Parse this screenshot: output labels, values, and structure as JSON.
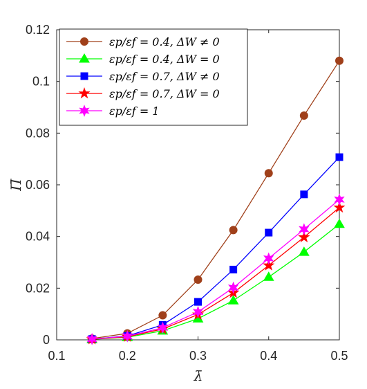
{
  "chart_data": {
    "type": "line",
    "xlabel": "λ̄",
    "ylabel": "Π̄",
    "xlim": [
      0.1,
      0.5
    ],
    "ylim": [
      0,
      0.12
    ],
    "xticks": [
      "0.1",
      "0.2",
      "0.3",
      "0.4",
      "0.5"
    ],
    "yticks": [
      "0",
      "0.02",
      "0.04",
      "0.06",
      "0.08",
      "0.1",
      "0.12"
    ],
    "grid": false,
    "legend_position": "top-left",
    "x": [
      0.15,
      0.2,
      0.25,
      0.3,
      0.35,
      0.4,
      0.45,
      0.5
    ],
    "series": [
      {
        "name": "εp/εf = 0.4, ΔW ≠ 0",
        "color": "#A0401A",
        "marker": "circle",
        "values": [
          0.0005,
          0.0025,
          0.0095,
          0.0233,
          0.0425,
          0.0645,
          0.0868,
          0.108
        ]
      },
      {
        "name": "εp/εf = 0.4, ΔW = 0",
        "color": "#00FF00",
        "marker": "triangle",
        "values": [
          0.0002,
          0.001,
          0.0035,
          0.0082,
          0.0152,
          0.0243,
          0.034,
          0.0448
        ]
      },
      {
        "name": "εp/εf = 0.7, ΔW ≠ 0",
        "color": "#0000FF",
        "marker": "square",
        "values": [
          0.0003,
          0.0015,
          0.0058,
          0.0147,
          0.0272,
          0.0415,
          0.0563,
          0.0707
        ]
      },
      {
        "name": "εp/εf = 0.7, ΔW = 0",
        "color": "#FF0000",
        "marker": "star",
        "values": [
          0.0002,
          0.0012,
          0.0042,
          0.0098,
          0.0182,
          0.0288,
          0.0397,
          0.0512
        ]
      },
      {
        "name": "εp/εf = 1",
        "color": "#FF00FF",
        "marker": "hexagram",
        "values": [
          0.0003,
          0.0014,
          0.0047,
          0.0108,
          0.0202,
          0.0315,
          0.0428,
          0.0543
        ]
      }
    ]
  }
}
